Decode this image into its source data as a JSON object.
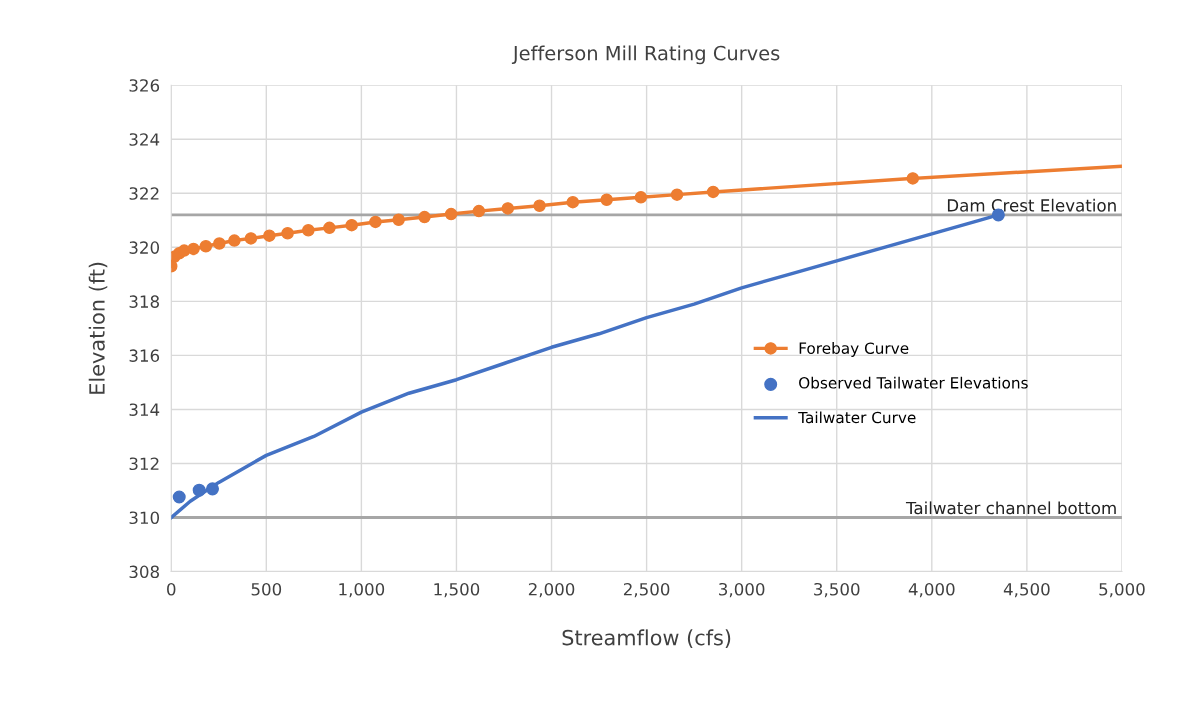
{
  "chart_data": {
    "type": "line",
    "title": "Jefferson Mill Rating Curves",
    "xlabel": "Streamflow (cfs)",
    "ylabel": "Elevation (ft)",
    "xlim": [
      0,
      5000
    ],
    "xticks": [
      {
        "value": 0,
        "label": "0"
      },
      {
        "value": 500,
        "label": "500"
      },
      {
        "value": 1000,
        "label": "1,000"
      },
      {
        "value": 1500,
        "label": "1,500"
      },
      {
        "value": 2000,
        "label": "2,000"
      },
      {
        "value": 2500,
        "label": "2,500"
      },
      {
        "value": 3000,
        "label": "3,000"
      },
      {
        "value": 3500,
        "label": "3,500"
      },
      {
        "value": 4000,
        "label": "4,000"
      },
      {
        "value": 4500,
        "label": "4,500"
      },
      {
        "value": 5000,
        "label": "5,000"
      }
    ],
    "ylim": [
      308,
      326
    ],
    "yticks": [
      308,
      310,
      312,
      314,
      316,
      318,
      320,
      322,
      324,
      326
    ],
    "grid": true,
    "legend": "right",
    "series": [
      {
        "name": "Forebay Curve",
        "marker": "circle",
        "color": "#ed7d31",
        "x": [
          0,
          16,
          42,
          68,
          117,
          182,
          253,
          332,
          419,
          516,
          612,
          721,
          832,
          949,
          1074,
          1196,
          1332,
          1472,
          1618,
          1770,
          1937,
          2112,
          2290,
          2470,
          2660,
          2850,
          3900
        ],
        "values": [
          319.3,
          319.65,
          319.78,
          319.88,
          319.94,
          320.04,
          320.14,
          320.25,
          320.33,
          320.43,
          320.52,
          320.63,
          320.72,
          320.82,
          320.94,
          321.02,
          321.12,
          321.23,
          321.34,
          321.44,
          321.54,
          321.67,
          321.76,
          321.85,
          321.95,
          322.05,
          322.55
        ]
      },
      {
        "marker": "none",
        "color": "#ed7d31",
        "x": [
          3900,
          5000
        ],
        "values": [
          322.55,
          323.0
        ]
      },
      {
        "name": "Observed Tailwater Elevations",
        "type": "scatter",
        "marker": "circle",
        "color": "#4472c4",
        "x": [
          42,
          147,
          217,
          4350
        ],
        "values": [
          310.76,
          311.01,
          311.06,
          321.2
        ]
      },
      {
        "name": "Tailwater Curve",
        "marker": "none",
        "color": "#4472c4",
        "x": [
          0,
          100,
          250,
          500,
          750,
          1000,
          1250,
          1500,
          1750,
          2000,
          2250,
          2500,
          2750,
          3000,
          3250,
          3500,
          3750,
          4000,
          4250,
          4350
        ],
        "values": [
          310.0,
          310.6,
          311.3,
          312.3,
          313.0,
          313.9,
          314.6,
          315.1,
          315.7,
          316.3,
          316.8,
          317.4,
          317.9,
          318.5,
          319.0,
          319.5,
          320.0,
          320.5,
          321.0,
          321.2
        ]
      }
    ],
    "ref_lines": [
      {
        "axis": "y",
        "value": 321.2,
        "label": "Dam Crest Elevation",
        "color": "#a6a6a6"
      },
      {
        "axis": "y",
        "value": 310,
        "label": "Tailwater channel bottom",
        "color": "#a6a6a6"
      }
    ]
  }
}
